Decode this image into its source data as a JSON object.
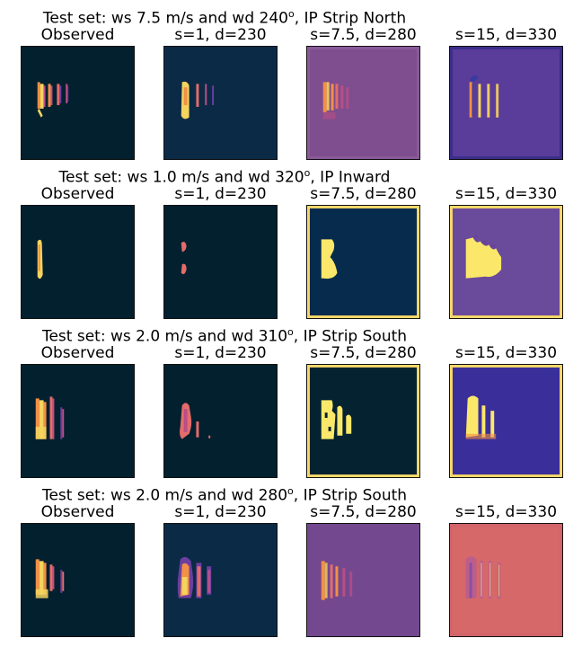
{
  "rows": [
    {
      "title_prefix": "Test set: ws 7.5 m/s and wd 240",
      "title_sup": "o",
      "title_suffix": ", IP Strip North",
      "panels": [
        {
          "label": "Observed",
          "bg": "#03202f",
          "frame": "#03202f",
          "shape": "obs1"
        },
        {
          "label": "s=1, d=230",
          "bg": "#0b2a45",
          "frame": "#0b2a45",
          "shape": "s1a"
        },
        {
          "label": "s=7.5, d=280",
          "bg": "#7f4e8f",
          "frame": "#8a5a98",
          "shape": "s7a"
        },
        {
          "label": "s=15, d=330",
          "bg": "#5a3c9a",
          "frame": "#3b2d8a",
          "shape": "s15a"
        }
      ]
    },
    {
      "title_prefix": "Test set: ws 1.0 m/s and wd 320",
      "title_sup": "o",
      "title_suffix": ", IP Inward",
      "panels": [
        {
          "label": "Observed",
          "bg": "#03202f",
          "frame": "#03202f",
          "shape": "obs2"
        },
        {
          "label": "s=1, d=230",
          "bg": "#03202f",
          "frame": "#03202f",
          "shape": "s1b"
        },
        {
          "label": "s=7.5, d=280",
          "bg": "#072b4d",
          "frame": "#f7d86a",
          "shape": "s7b"
        },
        {
          "label": "s=15, d=330",
          "bg": "#6a4a9a",
          "frame": "#f7d86a",
          "shape": "s15b"
        }
      ]
    },
    {
      "title_prefix": "Test set: ws 2.0 m/s and wd 310",
      "title_sup": "o",
      "title_suffix": ", IP Strip South",
      "panels": [
        {
          "label": "Observed",
          "bg": "#03202f",
          "frame": "#03202f",
          "shape": "obs3"
        },
        {
          "label": "s=1, d=230",
          "bg": "#03202f",
          "frame": "#03202f",
          "shape": "s1c"
        },
        {
          "label": "s=7.5, d=280",
          "bg": "#042230",
          "frame": "#f7d86a",
          "shape": "s7c"
        },
        {
          "label": "s=15, d=330",
          "bg": "#3a2f9a",
          "frame": "#f7d86a",
          "shape": "s15c"
        }
      ]
    },
    {
      "title_prefix": "Test set: ws 2.0 m/s and wd 280",
      "title_sup": "o",
      "title_suffix": ", IP Strip South",
      "panels": [
        {
          "label": "Observed",
          "bg": "#03202f",
          "frame": "#03202f",
          "shape": "obs4"
        },
        {
          "label": "s=1, d=230",
          "bg": "#0b2a45",
          "frame": "#0b2a45",
          "shape": "s1d"
        },
        {
          "label": "s=7.5, d=280",
          "bg": "#74488f",
          "frame": "#74488f",
          "shape": "s7d"
        },
        {
          "label": "s=15, d=330",
          "bg": "#d6686a",
          "frame": "#d06468",
          "shape": "s15d"
        }
      ]
    }
  ]
}
